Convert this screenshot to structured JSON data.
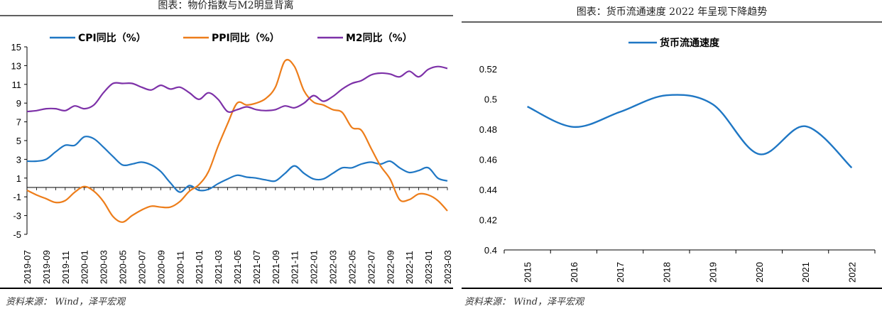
{
  "colors": {
    "cpi": "#1f77c4",
    "ppi": "#ed7d1a",
    "m2": "#7d31a8",
    "velocity": "#1f77c4"
  },
  "left": {
    "title": "图表：物价指数与M2明显背离",
    "source": "资料来源： Wind，泽平宏观",
    "chart_data": {
      "type": "line",
      "title": "图表：物价指数与M2明显背离",
      "ylim": [
        -5,
        15
      ],
      "yticks": [
        15,
        13,
        11,
        9,
        7,
        5,
        3,
        1,
        -1,
        -3,
        -5
      ],
      "xticks": [
        "2019-07",
        "2019-09",
        "2019-11",
        "2020-01",
        "2020-03",
        "2020-05",
        "2020-07",
        "2020-09",
        "2020-11",
        "2021-01",
        "2021-03",
        "2021-05",
        "2021-07",
        "2021-09",
        "2021-11",
        "2022-01",
        "2022-03",
        "2022-05",
        "2022-07",
        "2022-09",
        "2022-11",
        "2023-01",
        "2023-03"
      ],
      "x": [
        "2019-07",
        "2019-08",
        "2019-09",
        "2019-10",
        "2019-11",
        "2019-12",
        "2020-01",
        "2020-02",
        "2020-03",
        "2020-04",
        "2020-05",
        "2020-06",
        "2020-07",
        "2020-08",
        "2020-09",
        "2020-10",
        "2020-11",
        "2020-12",
        "2021-01",
        "2021-02",
        "2021-03",
        "2021-04",
        "2021-05",
        "2021-06",
        "2021-07",
        "2021-08",
        "2021-09",
        "2021-10",
        "2021-11",
        "2021-12",
        "2022-01",
        "2022-02",
        "2022-03",
        "2022-04",
        "2022-05",
        "2022-06",
        "2022-07",
        "2022-08",
        "2022-09",
        "2022-10",
        "2022-11",
        "2022-12",
        "2023-01",
        "2023-02",
        "2023-03"
      ],
      "series": [
        {
          "name": "CPI同比（%）",
          "key": "cpi",
          "values": [
            2.8,
            2.8,
            3.0,
            3.8,
            4.5,
            4.5,
            5.4,
            5.2,
            4.3,
            3.3,
            2.4,
            2.5,
            2.7,
            2.4,
            1.7,
            0.5,
            -0.5,
            0.2,
            -0.3,
            -0.2,
            0.4,
            0.9,
            1.3,
            1.1,
            1.0,
            0.8,
            0.7,
            1.5,
            2.3,
            1.5,
            0.9,
            0.9,
            1.5,
            2.1,
            2.1,
            2.5,
            2.7,
            2.5,
            2.8,
            2.1,
            1.6,
            1.8,
            2.1,
            1.0,
            0.7
          ]
        },
        {
          "name": "PPI同比（%）",
          "key": "ppi",
          "values": [
            -0.3,
            -0.8,
            -1.2,
            -1.6,
            -1.4,
            -0.5,
            0.1,
            -0.4,
            -1.5,
            -3.1,
            -3.7,
            -3.0,
            -2.4,
            -2.0,
            -2.1,
            -2.1,
            -1.5,
            -0.4,
            0.3,
            1.7,
            4.4,
            6.8,
            9.0,
            8.8,
            9.0,
            9.5,
            10.7,
            13.5,
            12.9,
            10.3,
            9.1,
            8.8,
            8.3,
            8.0,
            6.4,
            6.1,
            4.2,
            2.3,
            0.9,
            -1.3,
            -1.3,
            -0.7,
            -0.8,
            -1.4,
            -2.5
          ]
        },
        {
          "name": "M2同比（%）",
          "key": "m2",
          "values": [
            8.1,
            8.2,
            8.4,
            8.4,
            8.2,
            8.7,
            8.4,
            8.8,
            10.1,
            11.1,
            11.1,
            11.1,
            10.7,
            10.4,
            10.9,
            10.5,
            10.7,
            10.1,
            9.4,
            10.1,
            9.4,
            8.1,
            8.3,
            8.6,
            8.3,
            8.2,
            8.3,
            8.7,
            8.5,
            9.0,
            9.8,
            9.2,
            9.7,
            10.5,
            11.1,
            11.4,
            12.0,
            12.2,
            12.1,
            11.8,
            12.4,
            11.8,
            12.6,
            12.9,
            12.7
          ]
        }
      ]
    }
  },
  "right": {
    "title": "图表：货币流通速度 2022 年呈现下降趋势",
    "source": "资料来源： Wind，泽平宏观",
    "chart_data": {
      "type": "line",
      "title": "图表：货币流通速度 2022 年呈现下降趋势",
      "ylim": [
        0.4,
        0.52
      ],
      "yticks": [
        0.52,
        0.5,
        0.48,
        0.46,
        0.44,
        0.42,
        0.4
      ],
      "ytick_labels": [
        "0.52",
        "0.5",
        "0.48",
        "0.46",
        "0.44",
        "0.42",
        "0.4"
      ],
      "x": [
        "2015",
        "2016",
        "2017",
        "2018",
        "2019",
        "2020",
        "2021",
        "2022"
      ],
      "series": [
        {
          "name": "货币流通速度",
          "key": "velocity",
          "values": [
            0.495,
            0.4815,
            0.4915,
            0.5025,
            0.4965,
            0.4635,
            0.482,
            0.4545
          ]
        }
      ]
    }
  }
}
